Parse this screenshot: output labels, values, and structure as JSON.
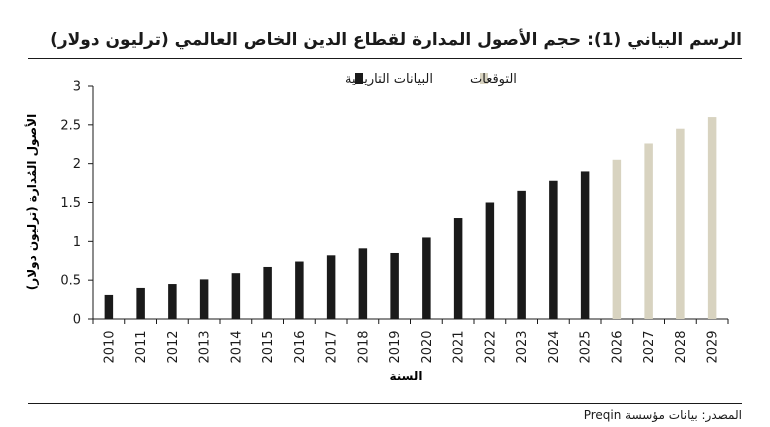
{
  "header": {
    "title": "الرسم البياني (1): حجم الأصول المدارة لقطاع الدين الخاص العالمي (ترليون دولار)"
  },
  "footer": {
    "source": "المصدر: بيانات مؤسسة Preqin"
  },
  "chart_data": {
    "type": "bar",
    "xlabel": "السنة",
    "ylabel": "الأصول المُدارة (ترليون دولار)",
    "ylim": [
      0,
      3
    ],
    "yticks": [
      0,
      0.5,
      1,
      1.5,
      2,
      2.5,
      3
    ],
    "ytick_labels": [
      "0",
      "0.5",
      "1",
      "1.5",
      "2",
      "2.5",
      "3"
    ],
    "grid": false,
    "legend_position": "top-center",
    "categories": [
      "2010",
      "2011",
      "2012",
      "2013",
      "2014",
      "2015",
      "2016",
      "2017",
      "2018",
      "2019",
      "2020",
      "2021",
      "2022",
      "2023",
      "2024",
      "2025",
      "2026",
      "2027",
      "2028",
      "2029"
    ],
    "series": [
      {
        "name": "البيانات التاريخية",
        "color": "#1a1a1a",
        "values": [
          0.31,
          0.4,
          0.45,
          0.51,
          0.59,
          0.67,
          0.74,
          0.82,
          0.91,
          0.85,
          1.05,
          1.3,
          1.5,
          1.65,
          1.78,
          1.9,
          null,
          null,
          null,
          null
        ]
      },
      {
        "name": "التوقعات",
        "color": "#d8d3c0",
        "values": [
          null,
          null,
          null,
          null,
          null,
          null,
          null,
          null,
          null,
          null,
          null,
          null,
          null,
          null,
          null,
          null,
          2.05,
          2.26,
          2.45,
          2.6
        ]
      }
    ]
  }
}
